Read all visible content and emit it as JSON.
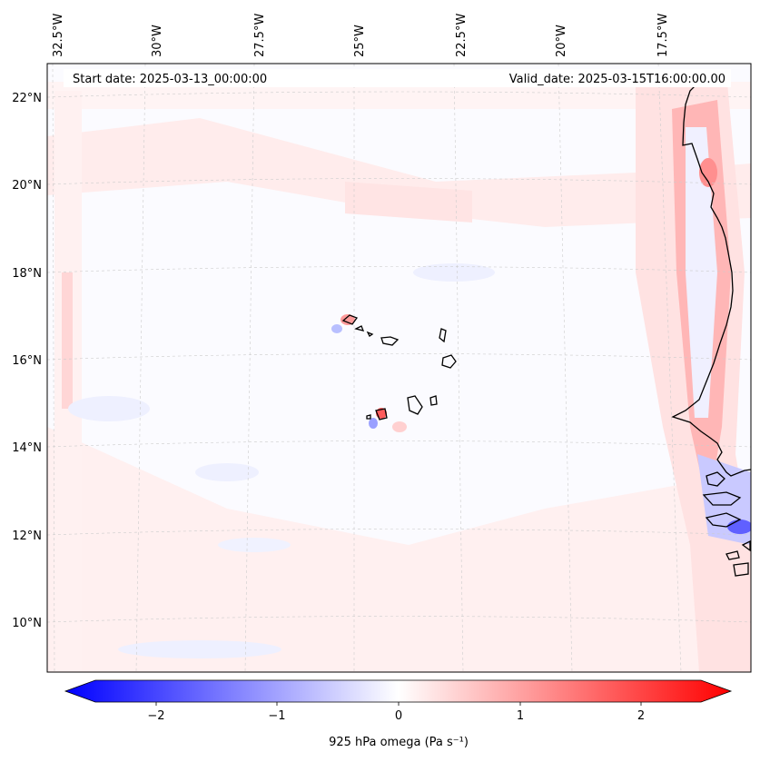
{
  "header": {
    "start_date": "Start date: 2025-03-13_00:00:00",
    "valid_date": "Valid_date: 2025-03-15T16:00:00.00"
  },
  "map": {
    "longitude_labels": [
      "32.5°W",
      "30°W",
      "27.5°W",
      "25°W",
      "22.5°W",
      "20°W",
      "17.5°W"
    ],
    "latitude_labels": [
      "22°N",
      "20°N",
      "18°N",
      "16°N",
      "14°N",
      "12°N",
      "10°N"
    ],
    "coastline_color": "#000000",
    "grid_color": "#cccccc"
  },
  "colorbar": {
    "label": "925 hPa omega (Pa s⁻¹)",
    "ticks": [
      "−2",
      "−1",
      "0",
      "1",
      "2"
    ],
    "min_color": "#0000ff",
    "mid_color": "#ffffff",
    "max_color": "#ff0000"
  }
}
